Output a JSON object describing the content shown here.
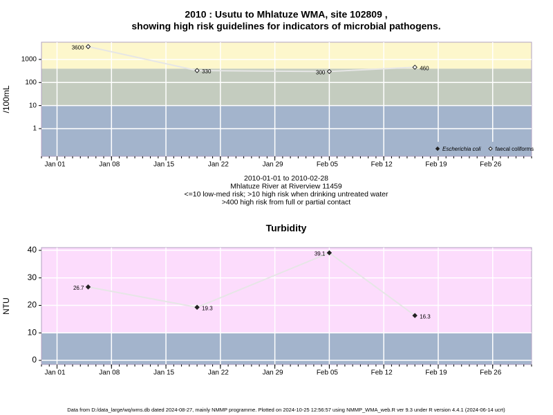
{
  "chart_data": [
    {
      "type": "line",
      "title_lines": [
        "2010 : Usutu to Mhlatuze WMA, site 102809 ,",
        "showing high risk guidelines for indicators of microbial pathogens."
      ],
      "ylabel": "/100mL",
      "log_y": true,
      "notes": [
        "2010-01-01 to 2010-02-28",
        "Mhlatuze River at Riverview 11459",
        "<=10 low-med risk; >10 high risk when drinking untreated water",
        ">400 high risk from full or partial contact"
      ],
      "x": [
        "2010-01-05",
        "2010-01-19",
        "2010-02-05",
        "2010-02-16"
      ],
      "series": [
        {
          "name": "Escherichia coli",
          "color": "#222222",
          "filled": true,
          "values": [
            null,
            null,
            null,
            null
          ]
        },
        {
          "name": "faecal coliforms",
          "color": "#222222",
          "filled": false,
          "values": [
            3600,
            330,
            300,
            460
          ]
        }
      ],
      "bands": [
        {
          "from": 0.063,
          "to": 10,
          "color": "#a3b4cc"
        },
        {
          "from": 10,
          "to": 400,
          "color": "#c4ccbf"
        },
        {
          "from": 400,
          "to": 5600,
          "color": "#fdf7cc"
        }
      ],
      "xlim": [
        "2009-12-30",
        "2010-03-03"
      ],
      "xticks": [
        {
          "value": "2010-01-01",
          "label": "Jan 01"
        },
        {
          "value": "2010-01-08",
          "label": "Jan 08"
        },
        {
          "value": "2010-01-15",
          "label": "Jan 15"
        },
        {
          "value": "2010-01-22",
          "label": "Jan 22"
        },
        {
          "value": "2010-01-29",
          "label": "Jan 29"
        },
        {
          "value": "2010-02-05",
          "label": "Feb 05"
        },
        {
          "value": "2010-02-12",
          "label": "Feb 12"
        },
        {
          "value": "2010-02-19",
          "label": "Feb 19"
        },
        {
          "value": "2010-02-26",
          "label": "Feb 26"
        }
      ],
      "ylim": [
        0.063,
        5600
      ],
      "yticks": [
        1,
        10,
        100,
        1000
      ],
      "grid": true,
      "legend": "bottom-right"
    },
    {
      "type": "line",
      "title_lines": [
        "Turbidity"
      ],
      "ylabel": "NTU",
      "log_y": false,
      "x": [
        "2010-01-05",
        "2010-01-19",
        "2010-02-05",
        "2010-02-16"
      ],
      "series": [
        {
          "name": "Turbidity",
          "color": "#222222",
          "filled": true,
          "values": [
            26.7,
            19.3,
            39.1,
            16.3
          ]
        }
      ],
      "bands": [
        {
          "from": -1.5,
          "to": 10,
          "color": "#a3b4cc"
        },
        {
          "from": 10,
          "to": 41,
          "color": "#fcdcfc"
        }
      ],
      "xlim": [
        "2009-12-30",
        "2010-03-03"
      ],
      "xticks": [
        {
          "value": "2010-01-01",
          "label": "Jan 01"
        },
        {
          "value": "2010-01-08",
          "label": "Jan 08"
        },
        {
          "value": "2010-01-15",
          "label": "Jan 15"
        },
        {
          "value": "2010-01-22",
          "label": "Jan 22"
        },
        {
          "value": "2010-01-29",
          "label": "Jan 29"
        },
        {
          "value": "2010-02-05",
          "label": "Feb 05"
        },
        {
          "value": "2010-02-12",
          "label": "Feb 12"
        },
        {
          "value": "2010-02-19",
          "label": "Feb 19"
        },
        {
          "value": "2010-02-26",
          "label": "Feb 26"
        }
      ],
      "ylim": [
        -1.5,
        41
      ],
      "yticks": [
        0,
        10,
        20,
        30,
        40
      ],
      "grid": true
    }
  ],
  "footer": "Data from D:/data_large/wq/wms.db dated 2024-08-27, mainly NMMP programme. Plotted on 2024-10-25 12:56:57 using NMMP_WMA_web.R ver 9.3 under R version 4.4.1 (2024-06-14 ucrt)"
}
